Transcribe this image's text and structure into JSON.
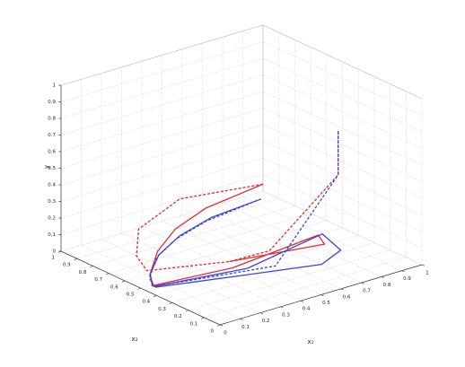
{
  "chart_data": {
    "type": "line3d",
    "x1_label": "x₁",
    "x2_label": "x₂",
    "y_label": "y",
    "x1lim": [
      0,
      1
    ],
    "x2lim": [
      0,
      1
    ],
    "ylim": [
      0,
      1
    ],
    "x1ticks": [
      0,
      0.1,
      0.2,
      0.3,
      0.4,
      0.5,
      0.6,
      0.7,
      0.8,
      0.9,
      1
    ],
    "x2ticks": [
      0,
      0.1,
      0.2,
      0.3,
      0.4,
      0.5,
      0.6,
      0.7,
      0.8,
      0.9,
      1
    ],
    "yticks": [
      0,
      0.1,
      0.2,
      0.3,
      0.4,
      0.5,
      0.6,
      0.7,
      0.8,
      0.9,
      1
    ],
    "grid": true,
    "series": [
      {
        "color": "#e8262d",
        "dash": false,
        "x1": [
          0.56,
          0.34,
          0.22,
          0.14,
          0.08,
          0.05,
          0.41,
          0.88,
          0.84,
          0.44
        ],
        "x2": [
          0.44,
          0.52,
          0.56,
          0.57,
          0.54,
          0.49,
          0.44,
          0.5,
          0.41,
          0.5
        ],
        "values": [
          0.45,
          0.35,
          0.25,
          0.14,
          0.04,
          0,
          0,
          0,
          0,
          0
        ]
      },
      {
        "color": "#3b45d8",
        "dash": false,
        "x1": [
          0.51,
          0.33,
          0.21,
          0.13,
          0.07,
          0.05,
          0.45,
          0.9,
          0.85,
          0.7,
          0.4,
          0.05
        ],
        "x2": [
          0.39,
          0.47,
          0.52,
          0.55,
          0.53,
          0.48,
          0.4,
          0.5,
          0.32,
          0.25,
          0.35,
          0.47
        ],
        "values": [
          0.4,
          0.32,
          0.23,
          0.13,
          0.04,
          0,
          0,
          0,
          0,
          0,
          0,
          0
        ]
      },
      {
        "color": "#e8262d",
        "dash": true,
        "x1": [
          0.56,
          0.32,
          0.14,
          0.09,
          0.11,
          0.44,
          0.63,
          0.9,
          0.9
        ],
        "x2": [
          0.44,
          0.66,
          0.69,
          0.64,
          0.6,
          0.5,
          0.49,
          0.4,
          0.4
        ],
        "values": [
          0.45,
          0.35,
          0.22,
          0.1,
          0.02,
          0,
          0,
          0.4,
          0.67
        ]
      },
      {
        "color": "#3b45d8",
        "dash": true,
        "x1": [
          0.51,
          0.31,
          0.2,
          0.12,
          0.06,
          0.05,
          0.55,
          0.9,
          0.9
        ],
        "x2": [
          0.39,
          0.48,
          0.53,
          0.55,
          0.52,
          0.48,
          0.35,
          0.4,
          0.4
        ],
        "values": [
          0.4,
          0.3,
          0.21,
          0.12,
          0.03,
          0,
          0,
          0.4,
          0.67
        ]
      }
    ]
  }
}
